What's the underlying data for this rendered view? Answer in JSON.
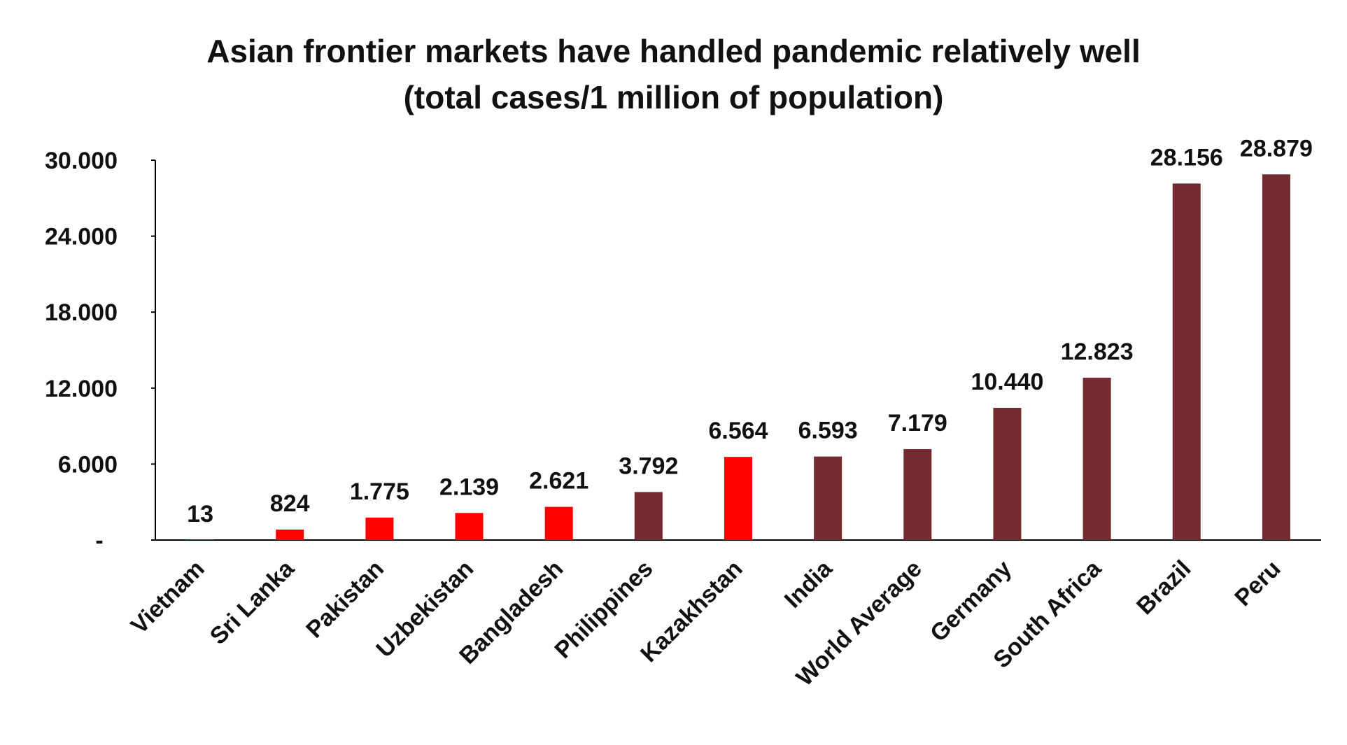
{
  "chart_data": {
    "type": "bar",
    "title": "Asian frontier markets have handled pandemic relatively well",
    "subtitle": "(total cases/1 million of population)",
    "categories": [
      "Vietnam",
      "Sri Lanka",
      "Pakistan",
      "Uzbekistan",
      "Bangladesh",
      "Philippines",
      "Kazakhstan",
      "India",
      "World Average",
      "Germany",
      "South Africa",
      "Brazil",
      "Peru"
    ],
    "values": [
      13,
      824,
      1775,
      2139,
      2621,
      3792,
      6564,
      6593,
      7179,
      10440,
      12823,
      28156,
      28879
    ],
    "value_labels": [
      "13",
      "824",
      "1.775",
      "2.139",
      "2.621",
      "3.792",
      "6.564",
      "6.593",
      "7.179",
      "10.440",
      "12.823",
      "28.156",
      "28.879"
    ],
    "bar_colors": [
      "#ff0000",
      "#ff0000",
      "#ff0000",
      "#ff0000",
      "#ff0000",
      "#722b2e",
      "#ff0000",
      "#722b2e",
      "#722b2e",
      "#722b2e",
      "#722b2e",
      "#722b2e",
      "#722b2e"
    ],
    "yticks": [
      0,
      6000,
      12000,
      18000,
      24000,
      30000
    ],
    "ytick_labels": [
      "-",
      "6.000",
      "12.000",
      "18.000",
      "24.000",
      "30.000"
    ],
    "ylim": [
      0,
      30000
    ],
    "grid": false,
    "legend": "none"
  }
}
